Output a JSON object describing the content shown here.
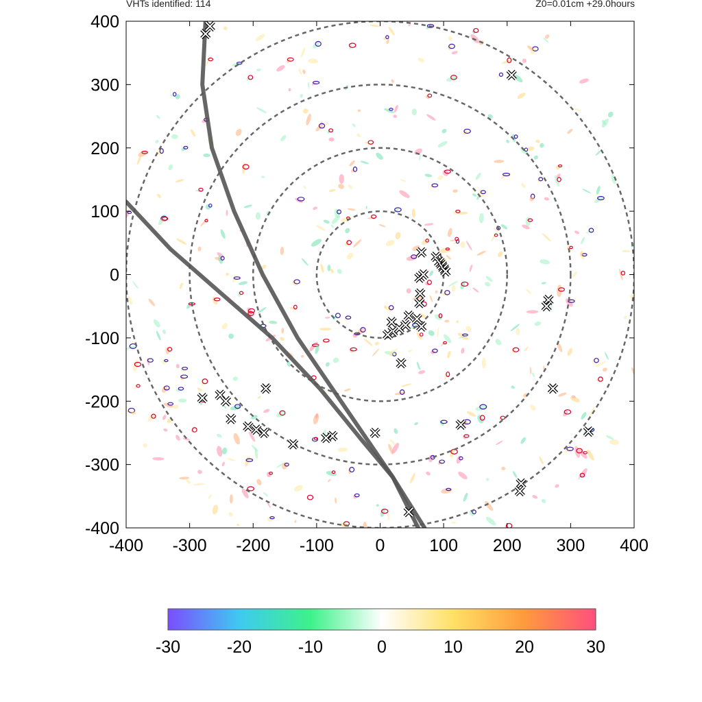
{
  "header": {
    "vht_count_label": "VHTs identified: 114",
    "run_info": "Z0=0.01cm  +29.0hours"
  },
  "chart_data": {
    "type": "scatter",
    "title": "",
    "xlabel": "",
    "ylabel": "",
    "xlim": [
      -400,
      400
    ],
    "ylim": [
      -400,
      400
    ],
    "x_ticks": [
      -400,
      -300,
      -200,
      -100,
      0,
      100,
      200,
      300,
      400
    ],
    "y_ticks": [
      -400,
      -300,
      -200,
      -100,
      0,
      100,
      200,
      300,
      400
    ],
    "grid": false,
    "range_rings_radius": [
      100,
      200,
      300,
      400
    ],
    "colorbar": {
      "min": -30,
      "max": 30,
      "ticks": [
        -30,
        -20,
        -10,
        0,
        10,
        20,
        30
      ],
      "colors": [
        "#7b4dff",
        "#3fc9f2",
        "#3df28a",
        "#ffffff",
        "#ffe066",
        "#ff9a3c",
        "#ff4f7d"
      ]
    },
    "vht_markers": [
      {
        "x": -275,
        "y": 380
      },
      {
        "x": -268,
        "y": 392
      },
      {
        "x": 207,
        "y": 315
      },
      {
        "x": 65,
        "y": 35
      },
      {
        "x": 88,
        "y": 28
      },
      {
        "x": 93,
        "y": 20
      },
      {
        "x": 97,
        "y": 15
      },
      {
        "x": 100,
        "y": 10
      },
      {
        "x": 103,
        "y": 5
      },
      {
        "x": 62,
        "y": -5
      },
      {
        "x": 68,
        "y": 0
      },
      {
        "x": 63,
        "y": -30
      },
      {
        "x": 62,
        "y": -45
      },
      {
        "x": 58,
        "y": -70
      },
      {
        "x": 45,
        "y": -65
      },
      {
        "x": 40,
        "y": -80
      },
      {
        "x": 30,
        "y": -85
      },
      {
        "x": 20,
        "y": -90
      },
      {
        "x": 12,
        "y": -95
      },
      {
        "x": 18,
        "y": -75
      },
      {
        "x": 65,
        "y": -82
      },
      {
        "x": 33,
        "y": -140
      },
      {
        "x": 265,
        "y": -40
      },
      {
        "x": 262,
        "y": -50
      },
      {
        "x": 272,
        "y": -180
      },
      {
        "x": -280,
        "y": -195
      },
      {
        "x": -252,
        "y": -190
      },
      {
        "x": -243,
        "y": -200
      },
      {
        "x": -235,
        "y": -228
      },
      {
        "x": -180,
        "y": -180
      },
      {
        "x": -208,
        "y": -240
      },
      {
        "x": -195,
        "y": -245
      },
      {
        "x": -183,
        "y": -250
      },
      {
        "x": -137,
        "y": -268
      },
      {
        "x": -75,
        "y": -255
      },
      {
        "x": -85,
        "y": -258
      },
      {
        "x": -8,
        "y": -250
      },
      {
        "x": 127,
        "y": -237
      },
      {
        "x": 328,
        "y": -248
      },
      {
        "x": 222,
        "y": -330
      },
      {
        "x": 220,
        "y": -342
      },
      {
        "x": 45,
        "y": -375
      }
    ],
    "track_lines": [
      {
        "name": "",
        "points": [
          [
            -275,
            400
          ],
          [
            -280,
            300
          ],
          [
            -265,
            200
          ],
          [
            -230,
            100
          ],
          [
            -185,
            0
          ],
          [
            -130,
            -100
          ],
          [
            -55,
            -210
          ],
          [
            20,
            -320
          ],
          [
            70,
            -400
          ]
        ]
      },
      {
        "name": "",
        "points": [
          [
            -400,
            115
          ],
          [
            -330,
            40
          ],
          [
            -250,
            -30
          ],
          [
            -170,
            -100
          ],
          [
            -95,
            -180
          ],
          [
            -30,
            -260
          ],
          [
            20,
            -320
          ],
          [
            60,
            -400
          ]
        ]
      }
    ]
  }
}
